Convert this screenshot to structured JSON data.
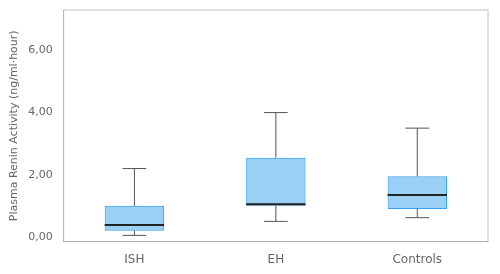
{
  "chart_data": {
    "type": "box",
    "ylabel": "Plasma Renin Activity (ng/ml·hour)",
    "categories": [
      "ISH",
      "EH",
      "Controls"
    ],
    "boxes": [
      {
        "whisker_low": 0.05,
        "q1": 0.2,
        "median": 0.38,
        "q3": 1.0,
        "whisker_high": 2.2
      },
      {
        "whisker_low": 0.5,
        "q1": 1.0,
        "median": 1.05,
        "q3": 2.55,
        "whisker_high": 4.0
      },
      {
        "whisker_low": 0.62,
        "q1": 0.9,
        "median": 1.35,
        "q3": 1.95,
        "whisker_high": 3.5
      }
    ],
    "ylim": [
      -0.15,
      7.3
    ],
    "yticks": [
      {
        "value": 0,
        "label": "0,00"
      },
      {
        "value": 2,
        "label": "2,00"
      },
      {
        "value": 4,
        "label": "4,00"
      },
      {
        "value": 6,
        "label": "6,00"
      }
    ],
    "grid": false
  }
}
